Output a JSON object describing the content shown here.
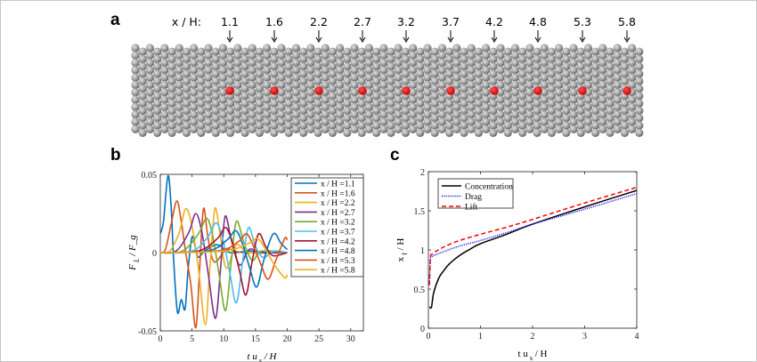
{
  "panel_a": {
    "label": "a",
    "prefix": "x / H:",
    "positions": [
      "1.1",
      "1.6",
      "2.2",
      "2.7",
      "3.2",
      "3.7",
      "4.2",
      "4.8",
      "5.3",
      "5.8"
    ],
    "particle_color": "#9a9a9a",
    "marker_color": "#c00000"
  },
  "chart_data": [
    {
      "panel": "b",
      "type": "line",
      "xlabel": "t u_s / H",
      "ylabel": "F_L / F_g",
      "xlim": [
        0,
        32
      ],
      "ylim": [
        -0.05,
        0.05
      ],
      "xticks": [
        "0",
        "5",
        "10",
        "15",
        "20",
        "25",
        "30"
      ],
      "yticks": [
        "-0.05",
        "0",
        "0.05"
      ],
      "legend_position": "top-right",
      "grid": false,
      "series": [
        {
          "name": "x / H =1.1",
          "color": "#0072BD",
          "points": [
            [
              0,
              0.012
            ],
            [
              0.5,
              0.02
            ],
            [
              1.2,
              0.049
            ],
            [
              1.7,
              0.03
            ],
            [
              2.1,
              -0.005
            ],
            [
              2.7,
              -0.038
            ],
            [
              3.3,
              -0.03
            ],
            [
              3.9,
              -0.036
            ],
            [
              4.4,
              -0.01
            ],
            [
              5,
              0.01
            ],
            [
              5.6,
              0.002
            ],
            [
              6,
              -0.003
            ],
            [
              7,
              0.001
            ],
            [
              9,
              0.005
            ],
            [
              11,
              0
            ],
            [
              14,
              0.001
            ],
            [
              17,
              0
            ],
            [
              20,
              0
            ]
          ]
        },
        {
          "name": "x / H =1.6",
          "color": "#D95319",
          "points": [
            [
              0,
              0
            ],
            [
              0.8,
              0.002
            ],
            [
              1.7,
              0.018
            ],
            [
              2.6,
              0.033
            ],
            [
              3.3,
              0.02
            ],
            [
              4,
              0
            ],
            [
              4.8,
              -0.02
            ],
            [
              5.6,
              -0.048
            ],
            [
              6.2,
              -0.01
            ],
            [
              6.8,
              0.028
            ],
            [
              7.5,
              0.01
            ],
            [
              8.5,
              -0.006
            ],
            [
              10.5,
              0.002
            ],
            [
              13,
              0
            ],
            [
              20,
              0
            ]
          ]
        },
        {
          "name": "x / H =2.2",
          "color": "#EDB120",
          "points": [
            [
              0,
              0
            ],
            [
              1.5,
              0.001
            ],
            [
              3,
              0.013
            ],
            [
              4,
              0.028
            ],
            [
              5,
              0.017
            ],
            [
              6,
              -0.01
            ],
            [
              7.1,
              -0.046
            ],
            [
              7.8,
              -0.01
            ],
            [
              8.6,
              0.028
            ],
            [
              9.4,
              0.012
            ],
            [
              10.4,
              -0.01
            ],
            [
              12,
              0.005
            ],
            [
              14,
              0
            ],
            [
              20,
              0
            ]
          ]
        },
        {
          "name": "x / H =2.7",
          "color": "#7E2F8E",
          "points": [
            [
              0,
              0
            ],
            [
              2.5,
              0.001
            ],
            [
              4.5,
              0.013
            ],
            [
              5.6,
              0.025
            ],
            [
              6.6,
              0.012
            ],
            [
              7.6,
              -0.015
            ],
            [
              8.7,
              -0.042
            ],
            [
              9.5,
              -0.01
            ],
            [
              10.2,
              0.023
            ],
            [
              11.2,
              0.008
            ],
            [
              12.5,
              -0.008
            ],
            [
              14,
              0.002
            ],
            [
              16,
              0
            ],
            [
              20,
              0
            ]
          ]
        },
        {
          "name": "x / H =3.2",
          "color": "#77AC30",
          "points": [
            [
              0,
              0
            ],
            [
              3.5,
              0.001
            ],
            [
              6,
              0.012
            ],
            [
              7.3,
              0.022
            ],
            [
              8.3,
              0.01
            ],
            [
              9.3,
              -0.015
            ],
            [
              10.3,
              -0.037
            ],
            [
              11.2,
              -0.005
            ],
            [
              12,
              0.02
            ],
            [
              13.2,
              0.006
            ],
            [
              14.5,
              -0.005
            ],
            [
              16,
              0.001
            ],
            [
              20,
              0
            ]
          ]
        },
        {
          "name": "x / H =3.7",
          "color": "#4DBEEE",
          "points": [
            [
              0,
              0
            ],
            [
              5,
              0.001
            ],
            [
              7.5,
              0.01
            ],
            [
              8.8,
              0.019
            ],
            [
              9.9,
              0.008
            ],
            [
              11,
              -0.014
            ],
            [
              12,
              -0.032
            ],
            [
              13,
              -0.005
            ],
            [
              13.9,
              0.016
            ],
            [
              15,
              0.004
            ],
            [
              16.2,
              -0.003
            ],
            [
              18,
              0.001
            ],
            [
              20,
              0
            ]
          ]
        },
        {
          "name": "x / H =4.2",
          "color": "#A2142F",
          "points": [
            [
              0,
              0
            ],
            [
              6,
              0.001
            ],
            [
              9,
              0.009
            ],
            [
              10.3,
              0.016
            ],
            [
              11.4,
              0.006
            ],
            [
              12.5,
              -0.012
            ],
            [
              13.5,
              -0.027
            ],
            [
              14.5,
              -0.005
            ],
            [
              15.5,
              0.012
            ],
            [
              16.6,
              0.004
            ],
            [
              17.8,
              -0.002
            ],
            [
              20,
              0
            ]
          ]
        },
        {
          "name": "x / H =4.8",
          "color": "#0072BD",
          "points": [
            [
              0,
              0
            ],
            [
              7.5,
              0.001
            ],
            [
              10.5,
              0.008
            ],
            [
              11.9,
              0.014
            ],
            [
              13,
              0.005
            ],
            [
              14.1,
              -0.01
            ],
            [
              15.2,
              -0.022
            ],
            [
              16.3,
              -0.005
            ],
            [
              17.8,
              0.012
            ],
            [
              19,
              0.006
            ],
            [
              20,
              0.002
            ]
          ]
        },
        {
          "name": "x / H =5.3",
          "color": "#D95319",
          "points": [
            [
              0,
              0
            ],
            [
              9,
              0.001
            ],
            [
              12.3,
              0.007
            ],
            [
              13.6,
              0.012
            ],
            [
              14.8,
              0.003
            ],
            [
              15.9,
              -0.008
            ],
            [
              17,
              -0.017
            ],
            [
              18.2,
              -0.005
            ],
            [
              19.6,
              0.009
            ],
            [
              20,
              0.008
            ]
          ]
        },
        {
          "name": "x / H =5.8",
          "color": "#EDB120",
          "points": [
            [
              0,
              0
            ],
            [
              10,
              0.001
            ],
            [
              14,
              0.006
            ],
            [
              15.3,
              0.009
            ],
            [
              16.6,
              0.002
            ],
            [
              18,
              -0.008
            ],
            [
              19.6,
              -0.016
            ],
            [
              20,
              -0.014
            ]
          ]
        }
      ]
    },
    {
      "panel": "c",
      "type": "line",
      "xlabel": "t u_s / H",
      "ylabel": "x_f / H",
      "xlim": [
        0,
        4
      ],
      "ylim": [
        0,
        2
      ],
      "xticks": [
        "0",
        "1",
        "2",
        "3",
        "4"
      ],
      "yticks": [
        "0",
        "0.5",
        "1",
        "1.5",
        "2"
      ],
      "legend_position": "top-left",
      "grid": false,
      "series": [
        {
          "name": "Concentration",
          "color": "#000000",
          "style": "solid",
          "points": [
            [
              0.02,
              0.27
            ],
            [
              0.06,
              0.27
            ],
            [
              0.1,
              0.45
            ],
            [
              0.2,
              0.64
            ],
            [
              0.3,
              0.74
            ],
            [
              0.4,
              0.82
            ],
            [
              0.6,
              0.93
            ],
            [
              0.8,
              1.01
            ],
            [
              1,
              1.08
            ],
            [
              1.5,
              1.2
            ],
            [
              2,
              1.33
            ],
            [
              3,
              1.55
            ],
            [
              4,
              1.76
            ]
          ]
        },
        {
          "name": "Drag",
          "color": "#2222ff",
          "style": "dotted",
          "points": [
            [
              0.02,
              0.6
            ],
            [
              0.04,
              0.88
            ],
            [
              0.08,
              0.92
            ],
            [
              0.3,
              0.98
            ],
            [
              0.6,
              1.05
            ],
            [
              1,
              1.12
            ],
            [
              1.5,
              1.22
            ],
            [
              2,
              1.33
            ],
            [
              3,
              1.52
            ],
            [
              4,
              1.72
            ]
          ]
        },
        {
          "name": "Lift",
          "color": "#ff0000",
          "style": "dashed",
          "points": [
            [
              0.02,
              0.55
            ],
            [
              0.04,
              0.9
            ],
            [
              0.08,
              0.95
            ],
            [
              0.3,
              1.04
            ],
            [
              0.6,
              1.12
            ],
            [
              1,
              1.2
            ],
            [
              1.5,
              1.29
            ],
            [
              2,
              1.39
            ],
            [
              3,
              1.6
            ],
            [
              4,
              1.8
            ]
          ]
        }
      ]
    }
  ]
}
